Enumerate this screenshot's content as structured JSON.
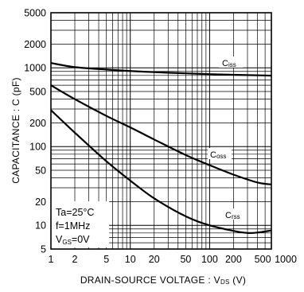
{
  "chart_data": {
    "type": "line",
    "x_scale": "log",
    "y_scale": "log",
    "xlim": [
      1,
      1000
    ],
    "ylim": [
      5,
      5000
    ],
    "grid": true,
    "x_ticks": [
      {
        "value": 1,
        "label": "1"
      },
      {
        "value": 2,
        "label": "2"
      },
      {
        "value": 5,
        "label": "5"
      },
      {
        "value": 10,
        "label": "10"
      },
      {
        "value": 20,
        "label": "20"
      },
      {
        "value": 50,
        "label": "50"
      },
      {
        "value": 100,
        "label": "100"
      },
      {
        "value": 200,
        "label": "200"
      },
      {
        "value": 500,
        "label": "500"
      },
      {
        "value": 1000,
        "label": "1000"
      }
    ],
    "y_ticks": [
      {
        "value": 5,
        "label": "5"
      },
      {
        "value": 10,
        "label": "10"
      },
      {
        "value": 20,
        "label": "20"
      },
      {
        "value": 50,
        "label": "50"
      },
      {
        "value": 100,
        "label": "100"
      },
      {
        "value": 200,
        "label": "200"
      },
      {
        "value": 500,
        "label": "500"
      },
      {
        "value": 1000,
        "label": "1000"
      },
      {
        "value": 2000,
        "label": "2000"
      },
      {
        "value": 5000,
        "label": "5000"
      }
    ],
    "xlabel": {
      "main": "DRAIN-SOURCE  VOLTAGE : V",
      "sub": "DS",
      "tail": "  (V)"
    },
    "ylabel": {
      "main": "CAPACITANCE : C  (pF)"
    },
    "series": [
      {
        "label_main": "C",
        "label_sub": "iss",
        "color": "#000000",
        "points": [
          [
            1,
            1150
          ],
          [
            2,
            1020
          ],
          [
            5,
            950
          ],
          [
            10,
            910
          ],
          [
            20,
            880
          ],
          [
            50,
            850
          ],
          [
            100,
            830
          ],
          [
            200,
            815
          ],
          [
            500,
            800
          ],
          [
            600,
            795
          ]
        ]
      },
      {
        "label_main": "C",
        "label_sub": "oss",
        "color": "#000000",
        "points": [
          [
            1,
            600
          ],
          [
            2,
            400
          ],
          [
            5,
            245
          ],
          [
            10,
            175
          ],
          [
            20,
            123
          ],
          [
            50,
            78
          ],
          [
            100,
            58
          ],
          [
            200,
            44
          ],
          [
            400,
            35
          ],
          [
            600,
            33
          ]
        ]
      },
      {
        "label_main": "C",
        "label_sub": "rss",
        "color": "#000000",
        "points": [
          [
            1,
            290
          ],
          [
            2,
            150
          ],
          [
            5,
            65
          ],
          [
            10,
            37
          ],
          [
            20,
            22
          ],
          [
            50,
            13
          ],
          [
            100,
            10
          ],
          [
            200,
            8.5
          ],
          [
            300,
            8
          ],
          [
            400,
            8.1
          ],
          [
            600,
            8.6
          ]
        ]
      }
    ],
    "conditions": [
      "Ta=25°C",
      "f=1MHz",
      "V",
      "GS",
      "=0V"
    ]
  }
}
